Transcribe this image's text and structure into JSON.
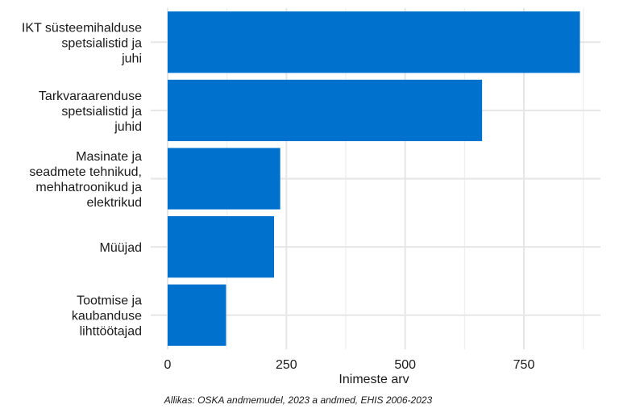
{
  "chart_data": {
    "type": "bar",
    "orientation": "horizontal",
    "categories": [
      [
        "IKT süsteemihalduse",
        "spetsialistid ja",
        "juhi"
      ],
      [
        "Tarkvaraarenduse",
        "spetsialistid ja",
        "juhid"
      ],
      [
        "Masinate ja",
        "seadmete tehnikud,",
        "mehhatroonikud ja",
        "elektrikud"
      ],
      [
        "Müüjad"
      ],
      [
        "Tootmise ja",
        "kaubanduse",
        "lihttöötajad"
      ]
    ],
    "values": [
      868,
      662,
      237,
      224,
      123
    ],
    "xlabel": "Inimeste arv",
    "ylabel": "",
    "xlim": [
      0,
      910
    ],
    "xticks": [
      0,
      250,
      500,
      750
    ],
    "xtick_labels": [
      "0",
      "250",
      "500",
      "750"
    ],
    "grid": true,
    "bar_color": "#0072ce",
    "caption": "Allikas: OSKA andmemudel, 2023 a andmed, EHIS 2006-2023"
  }
}
